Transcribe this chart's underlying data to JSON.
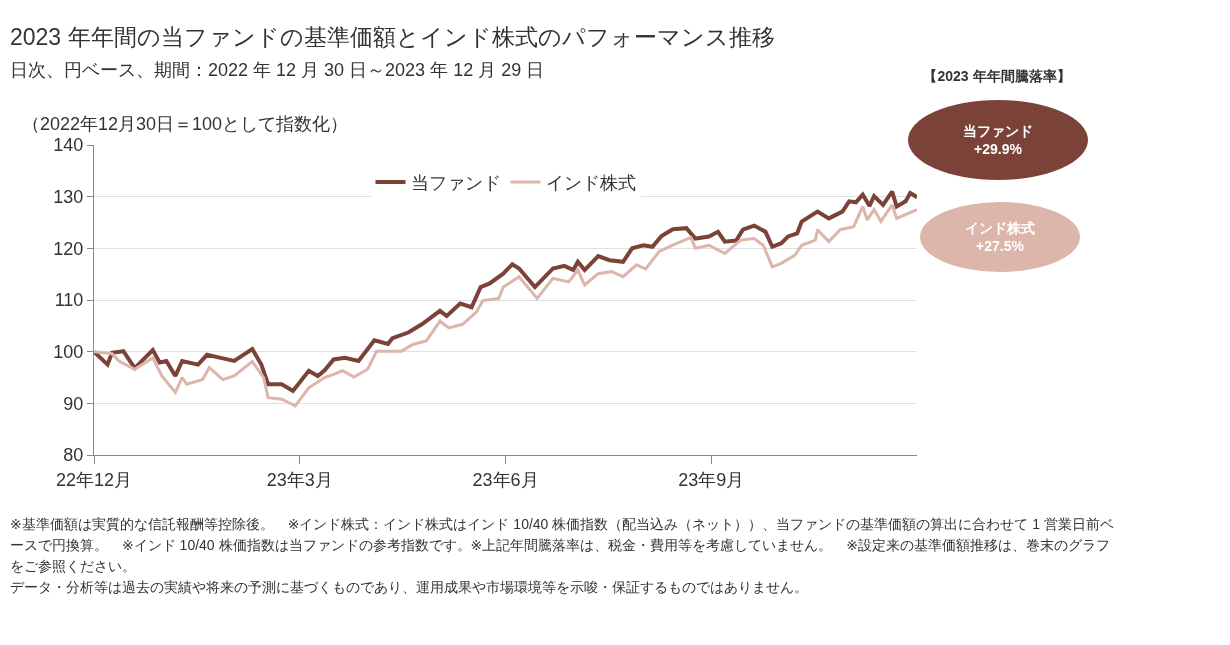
{
  "chart_data": {
    "type": "line",
    "title": "2023 年年間の当ファンドの基準価額とインド株式のパフォーマンス推移",
    "subtitle": "日次、円ベース、期間：2022 年 12 月 30 日～2023 年 12 月 29 日",
    "ylabel": "（2022年12月30日＝100として指数化）",
    "xlim": [
      "2022-12-30",
      "2023-12-29"
    ],
    "xticks": [
      {
        "value": "2022-12-30",
        "label": "22年12月"
      },
      {
        "value": "2023-03-31",
        "label": "23年3月"
      },
      {
        "value": "2023-06-30",
        "label": "23年6月"
      },
      {
        "value": "2023-09-29",
        "label": "23年9月"
      }
    ],
    "ylim": [
      80,
      140
    ],
    "yticks": [
      80,
      90,
      100,
      110,
      120,
      130,
      140
    ],
    "grid": "y",
    "legend": "top",
    "line_style": "solid",
    "marker": "none",
    "series": [
      {
        "name": "当ファンド",
        "color": "#7b4338",
        "x": [
          "2022-12-30",
          "2023-01-05",
          "2023-01-07",
          "2023-01-12",
          "2023-01-17",
          "2023-01-25",
          "2023-01-28",
          "2023-01-31",
          "2023-02-04",
          "2023-02-07",
          "2023-02-14",
          "2023-02-18",
          "2023-02-24",
          "2023-03-02",
          "2023-03-10",
          "2023-03-14",
          "2023-03-17",
          "2023-03-23",
          "2023-03-28",
          "2023-04-04",
          "2023-04-08",
          "2023-04-11",
          "2023-04-15",
          "2023-04-20",
          "2023-04-26",
          "2023-05-03",
          "2023-05-09",
          "2023-05-11",
          "2023-05-18",
          "2023-05-24",
          "2023-06-01",
          "2023-06-04",
          "2023-06-10",
          "2023-06-15",
          "2023-06-19",
          "2023-06-23",
          "2023-06-29",
          "2023-07-03",
          "2023-07-06",
          "2023-07-13",
          "2023-07-21",
          "2023-07-26",
          "2023-07-30",
          "2023-08-01",
          "2023-08-04",
          "2023-08-10",
          "2023-08-15",
          "2023-08-21",
          "2023-08-25",
          "2023-08-30",
          "2023-09-03",
          "2023-09-07",
          "2023-09-12",
          "2023-09-18",
          "2023-09-22",
          "2023-09-28",
          "2023-10-02",
          "2023-10-05",
          "2023-10-10",
          "2023-10-13",
          "2023-10-18",
          "2023-10-23",
          "2023-10-26",
          "2023-10-30",
          "2023-11-02",
          "2023-11-06",
          "2023-11-08",
          "2023-11-15",
          "2023-11-20",
          "2023-11-26",
          "2023-11-29",
          "2023-12-02",
          "2023-12-05",
          "2023-12-08",
          "2023-12-10",
          "2023-12-14",
          "2023-12-18",
          "2023-12-20",
          "2023-12-24",
          "2023-12-26",
          "2023-12-29"
        ],
        "values": [
          100,
          97.5,
          99.8,
          100.1,
          96.8,
          100.3,
          97.9,
          98.2,
          95.3,
          98.2,
          97.5,
          99.4,
          98.8,
          98.2,
          100.5,
          97.5,
          93.7,
          93.7,
          92.4,
          96.3,
          95.3,
          96.4,
          98.5,
          98.8,
          98.2,
          102.2,
          101.5,
          102.6,
          103.7,
          105.3,
          107.9,
          106.9,
          109.3,
          108.6,
          112.5,
          113.2,
          115.1,
          116.9,
          116.1,
          112.5,
          116.1,
          116.6,
          115.8,
          117.4,
          115.8,
          118.5,
          117.7,
          117.4,
          120,
          120.6,
          120.3,
          122.4,
          123.7,
          123.9,
          121.9,
          122.3,
          123.2,
          121.3,
          121.5,
          123.6,
          124.4,
          123.2,
          120.3,
          121,
          122.3,
          122.9,
          125.2,
          127.1,
          125.8,
          127.1,
          129.1,
          128.9,
          130.4,
          128.2,
          130.1,
          128.4,
          131,
          128.1,
          129.1,
          130.7,
          129.9
        ]
      },
      {
        "name": "インド株式",
        "color": "#dcb5ab",
        "x": [
          "2022-12-30",
          "2023-01-07",
          "2023-01-10",
          "2023-01-17",
          "2023-01-25",
          "2023-01-29",
          "2023-02-04",
          "2023-02-07",
          "2023-02-09",
          "2023-02-16",
          "2023-02-19",
          "2023-02-25",
          "2023-03-02",
          "2023-03-10",
          "2023-03-15",
          "2023-03-17",
          "2023-03-23",
          "2023-03-29",
          "2023-04-04",
          "2023-04-11",
          "2023-04-15",
          "2023-04-19",
          "2023-04-24",
          "2023-04-30",
          "2023-05-04",
          "2023-05-15",
          "2023-05-20",
          "2023-05-26",
          "2023-06-01",
          "2023-06-05",
          "2023-06-11",
          "2023-06-17",
          "2023-06-20",
          "2023-06-27",
          "2023-06-29",
          "2023-07-06",
          "2023-07-14",
          "2023-07-21",
          "2023-07-28",
          "2023-08-01",
          "2023-08-04",
          "2023-08-10",
          "2023-08-16",
          "2023-08-21",
          "2023-08-27",
          "2023-08-31",
          "2023-09-06",
          "2023-09-12",
          "2023-09-20",
          "2023-09-22",
          "2023-09-28",
          "2023-10-05",
          "2023-10-12",
          "2023-10-18",
          "2023-10-22",
          "2023-10-26",
          "2023-10-30",
          "2023-11-05",
          "2023-11-08",
          "2023-11-14",
          "2023-11-15",
          "2023-11-20",
          "2023-11-25",
          "2023-12-01",
          "2023-12-05",
          "2023-12-07",
          "2023-12-10",
          "2023-12-13",
          "2023-12-18",
          "2023-12-20",
          "2023-12-29"
        ],
        "values": [
          100,
          99.6,
          98.2,
          96.6,
          98.8,
          95.3,
          92.1,
          95,
          93.7,
          94.6,
          96.9,
          94.6,
          95.3,
          98.1,
          95,
          91.1,
          90.8,
          89.5,
          93,
          95,
          95.6,
          96.3,
          95.1,
          96.6,
          100.1,
          100.1,
          101.4,
          102.1,
          105.9,
          104.6,
          105.3,
          107.6,
          109.9,
          110.3,
          112.5,
          114.5,
          110.3,
          114.2,
          113.5,
          115.8,
          112.9,
          115.1,
          115.5,
          114.5,
          116.8,
          116,
          119.4,
          120.6,
          122.1,
          120,
          120.6,
          119,
          121.6,
          121.9,
          120.6,
          116.4,
          117.1,
          118.7,
          120.6,
          121.6,
          123.6,
          121.3,
          123.6,
          124.2,
          128.1,
          125.5,
          127.5,
          125.2,
          128.4,
          125.8,
          127.5
        ]
      }
    ],
    "annotations": [
      "【2023 年年間騰落率】",
      "当ファンド\n+29.9%",
      "インド株式\n+27.5%",
      "※基準価額は実質的な信託報酬等控除後。　※インド株式：インド株式はインド 10/40 株価指数（配当込み（ネット））、当ファンドの基準価額の算出に合わせて 1 営業日前ベースで円換算。　※インド 10/40 株価指数は当ファンドの参考指数です。※上記年間騰落率は、税金・費用等を考慮していません。　※設定来の基準価額推移は、巻末のグラフをご参照ください。",
      "データ・分析等は過去の実績や将来の予測に基づくものであり、運用成果や市場環境等を示唆・保証するものではありません。"
    ]
  }
}
